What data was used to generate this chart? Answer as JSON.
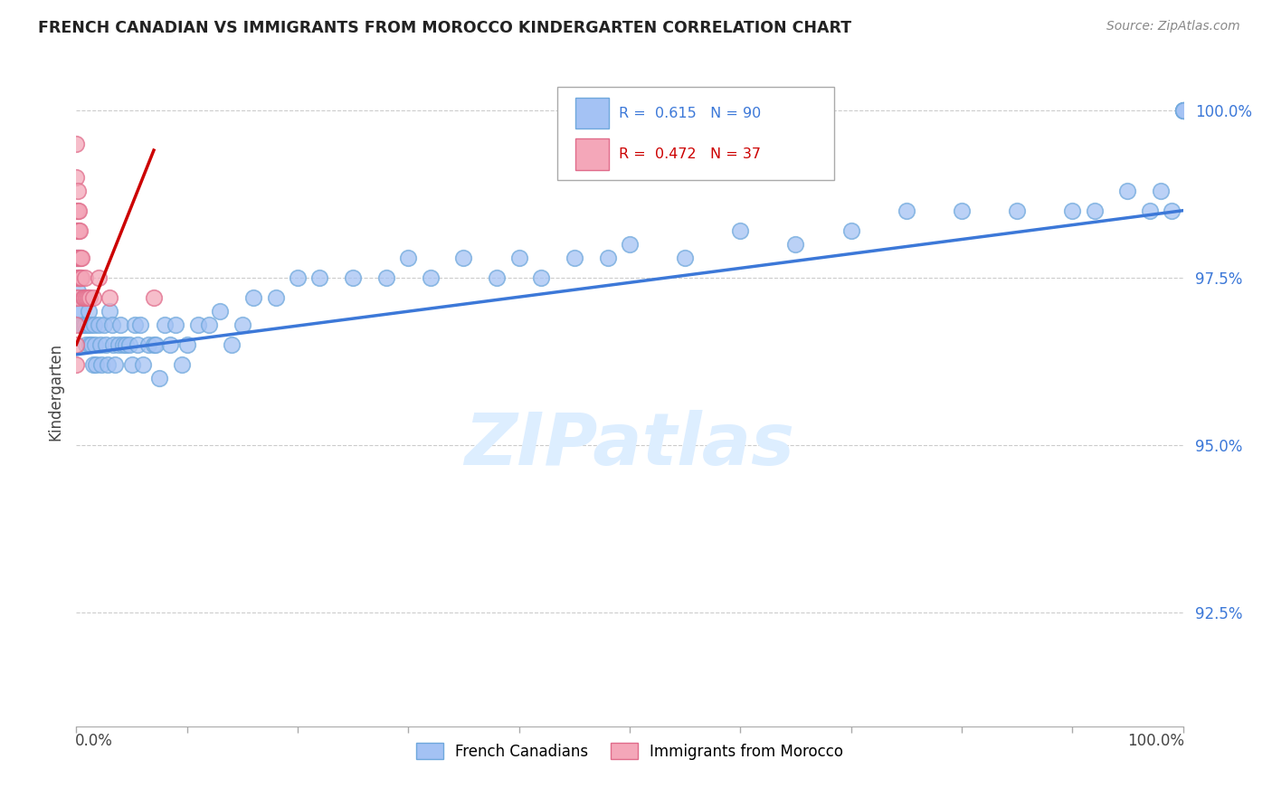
{
  "title": "FRENCH CANADIAN VS IMMIGRANTS FROM MOROCCO KINDERGARTEN CORRELATION CHART",
  "source": "Source: ZipAtlas.com",
  "ylabel": "Kindergarten",
  "ytick_labels": [
    "100.0%",
    "97.5%",
    "95.0%",
    "92.5%"
  ],
  "ytick_values": [
    1.0,
    0.975,
    0.95,
    0.925
  ],
  "xlim": [
    0.0,
    1.0
  ],
  "ylim": [
    0.908,
    1.008
  ],
  "blue_R": 0.615,
  "blue_N": 90,
  "pink_R": 0.472,
  "pink_N": 37,
  "blue_color": "#a4c2f4",
  "pink_color": "#f4a7b9",
  "blue_edge_color": "#6fa8dc",
  "pink_edge_color": "#e06c8b",
  "blue_line_color": "#3c78d8",
  "pink_line_color": "#cc0000",
  "grid_color": "#cccccc",
  "watermark_text": "ZIPatlas",
  "watermark_color": "#ddeeff",
  "blue_scatter_x": [
    0.0,
    0.0,
    0.001,
    0.001,
    0.002,
    0.002,
    0.003,
    0.004,
    0.005,
    0.006,
    0.007,
    0.008,
    0.009,
    0.01,
    0.01,
    0.011,
    0.012,
    0.013,
    0.014,
    0.015,
    0.016,
    0.017,
    0.018,
    0.02,
    0.022,
    0.023,
    0.025,
    0.027,
    0.028,
    0.03,
    0.032,
    0.033,
    0.035,
    0.038,
    0.04,
    0.042,
    0.045,
    0.048,
    0.05,
    0.053,
    0.055,
    0.058,
    0.06,
    0.065,
    0.07,
    0.072,
    0.075,
    0.08,
    0.085,
    0.09,
    0.095,
    0.1,
    0.11,
    0.12,
    0.13,
    0.14,
    0.15,
    0.16,
    0.18,
    0.2,
    0.22,
    0.25,
    0.28,
    0.3,
    0.32,
    0.35,
    0.38,
    0.4,
    0.42,
    0.45,
    0.48,
    0.5,
    0.55,
    0.6,
    0.65,
    0.7,
    0.75,
    0.8,
    0.85,
    0.9,
    0.92,
    0.95,
    0.97,
    0.98,
    0.99,
    1.0,
    1.0,
    1.0,
    1.0,
    1.0
  ],
  "blue_scatter_y": [
    0.978,
    0.972,
    0.978,
    0.973,
    0.975,
    0.97,
    0.972,
    0.968,
    0.97,
    0.968,
    0.972,
    0.968,
    0.965,
    0.972,
    0.968,
    0.97,
    0.965,
    0.968,
    0.965,
    0.962,
    0.968,
    0.965,
    0.962,
    0.968,
    0.965,
    0.962,
    0.968,
    0.965,
    0.962,
    0.97,
    0.968,
    0.965,
    0.962,
    0.965,
    0.968,
    0.965,
    0.965,
    0.965,
    0.962,
    0.968,
    0.965,
    0.968,
    0.962,
    0.965,
    0.965,
    0.965,
    0.96,
    0.968,
    0.965,
    0.968,
    0.962,
    0.965,
    0.968,
    0.968,
    0.97,
    0.965,
    0.968,
    0.972,
    0.972,
    0.975,
    0.975,
    0.975,
    0.975,
    0.978,
    0.975,
    0.978,
    0.975,
    0.978,
    0.975,
    0.978,
    0.978,
    0.98,
    0.978,
    0.982,
    0.98,
    0.982,
    0.985,
    0.985,
    0.985,
    0.985,
    0.985,
    0.988,
    0.985,
    0.988,
    0.985,
    1.0,
    1.0,
    1.0,
    1.0,
    1.0
  ],
  "pink_scatter_x": [
    0.0,
    0.0,
    0.0,
    0.0,
    0.0,
    0.0,
    0.0,
    0.0,
    0.0,
    0.0,
    0.001,
    0.001,
    0.001,
    0.001,
    0.001,
    0.001,
    0.002,
    0.002,
    0.002,
    0.002,
    0.003,
    0.003,
    0.003,
    0.004,
    0.004,
    0.005,
    0.005,
    0.006,
    0.007,
    0.008,
    0.009,
    0.01,
    0.012,
    0.015,
    0.02,
    0.03,
    0.07
  ],
  "pink_scatter_y": [
    0.995,
    0.99,
    0.985,
    0.982,
    0.978,
    0.975,
    0.972,
    0.968,
    0.965,
    0.962,
    0.988,
    0.985,
    0.982,
    0.978,
    0.975,
    0.972,
    0.985,
    0.982,
    0.978,
    0.975,
    0.982,
    0.978,
    0.975,
    0.978,
    0.975,
    0.978,
    0.975,
    0.972,
    0.972,
    0.975,
    0.972,
    0.972,
    0.972,
    0.972,
    0.975,
    0.972,
    0.972
  ],
  "blue_trend": [
    0.0,
    1.0,
    0.9635,
    0.985
  ],
  "pink_trend": [
    0.0,
    0.07,
    0.965,
    0.994
  ]
}
